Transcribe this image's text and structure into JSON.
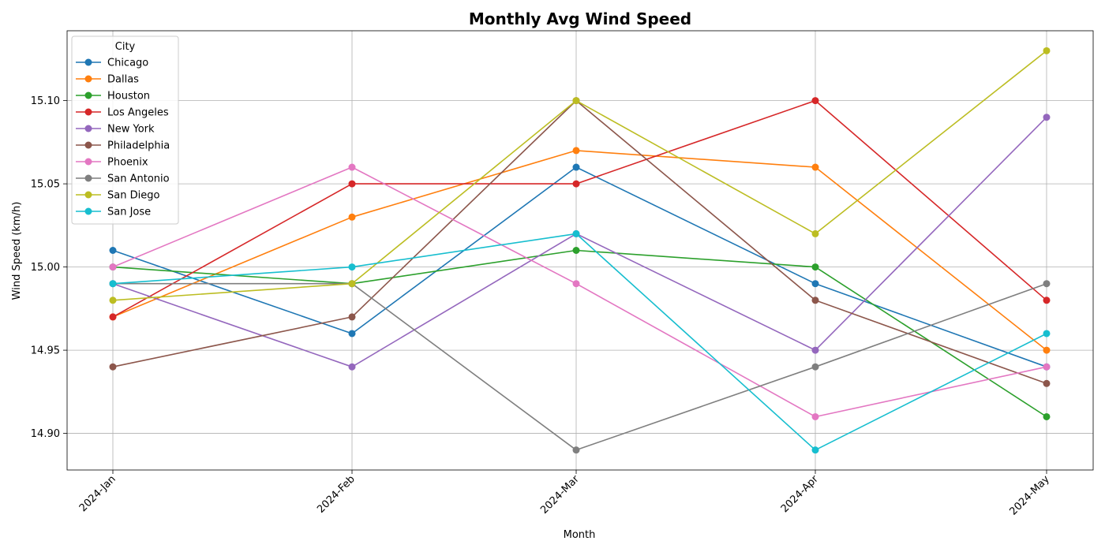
{
  "chart_data": {
    "type": "line",
    "title": "Monthly Avg Wind Speed",
    "xlabel": "Month",
    "ylabel": "Wind Speed (km/h)",
    "categories": [
      "2024-Jan",
      "2024-Feb",
      "2024-Mar",
      "2024-Apr",
      "2024-May"
    ],
    "ylim": [
      14.878,
      15.142
    ],
    "yticks": [
      "14.90",
      "14.95",
      "15.00",
      "15.05",
      "15.10"
    ],
    "grid": true,
    "legend": {
      "title": "City",
      "placement": "top-left"
    },
    "series": [
      {
        "name": "Chicago",
        "color": "#1f77b4",
        "values": [
          15.01,
          14.96,
          15.06,
          14.99,
          14.94
        ]
      },
      {
        "name": "Dallas",
        "color": "#ff7f0e",
        "values": [
          14.97,
          15.03,
          15.07,
          15.06,
          14.95
        ]
      },
      {
        "name": "Houston",
        "color": "#2ca02c",
        "values": [
          15.0,
          14.99,
          15.01,
          15.0,
          14.91
        ]
      },
      {
        "name": "Los Angeles",
        "color": "#d62728",
        "values": [
          14.97,
          15.05,
          15.05,
          15.1,
          14.98
        ]
      },
      {
        "name": "New York",
        "color": "#9467bd",
        "values": [
          14.99,
          14.94,
          15.02,
          14.95,
          15.09
        ]
      },
      {
        "name": "Philadelphia",
        "color": "#8c564b",
        "values": [
          14.94,
          14.97,
          15.1,
          14.98,
          14.93
        ]
      },
      {
        "name": "Phoenix",
        "color": "#e377c2",
        "values": [
          15.0,
          15.06,
          14.99,
          14.91,
          14.94
        ]
      },
      {
        "name": "San Antonio",
        "color": "#7f7f7f",
        "values": [
          14.99,
          14.99,
          14.89,
          14.94,
          14.99
        ]
      },
      {
        "name": "San Diego",
        "color": "#bcbd22",
        "values": [
          14.98,
          14.99,
          15.1,
          15.02,
          15.13
        ]
      },
      {
        "name": "San Jose",
        "color": "#17becf",
        "values": [
          14.99,
          15.0,
          15.02,
          14.89,
          14.96
        ]
      }
    ]
  }
}
